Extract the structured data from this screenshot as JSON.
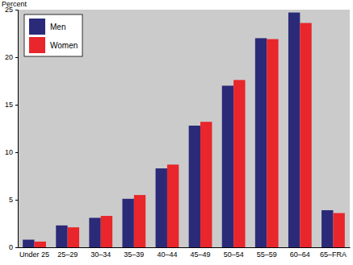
{
  "chart_data": {
    "type": "bar",
    "y_label": "Percent",
    "categories": [
      "Under 25",
      "25–29",
      "30–34",
      "35–39",
      "40–44",
      "45–49",
      "50–54",
      "55–59",
      "60–64",
      "65–FRA"
    ],
    "series": [
      {
        "name": "Men",
        "color": "#2b2a78",
        "values": [
          0.8,
          2.3,
          3.1,
          5.1,
          8.3,
          12.8,
          17.0,
          22.0,
          24.7,
          3.9
        ]
      },
      {
        "name": "Women",
        "color": "#e8262b",
        "values": [
          0.6,
          2.1,
          3.3,
          5.5,
          8.7,
          13.2,
          17.6,
          21.9,
          23.6,
          3.6
        ]
      }
    ],
    "ylim": [
      0,
      25
    ],
    "yticks": [
      0,
      5,
      10,
      15,
      20,
      25
    ],
    "grid": false,
    "legend": "upper left"
  }
}
